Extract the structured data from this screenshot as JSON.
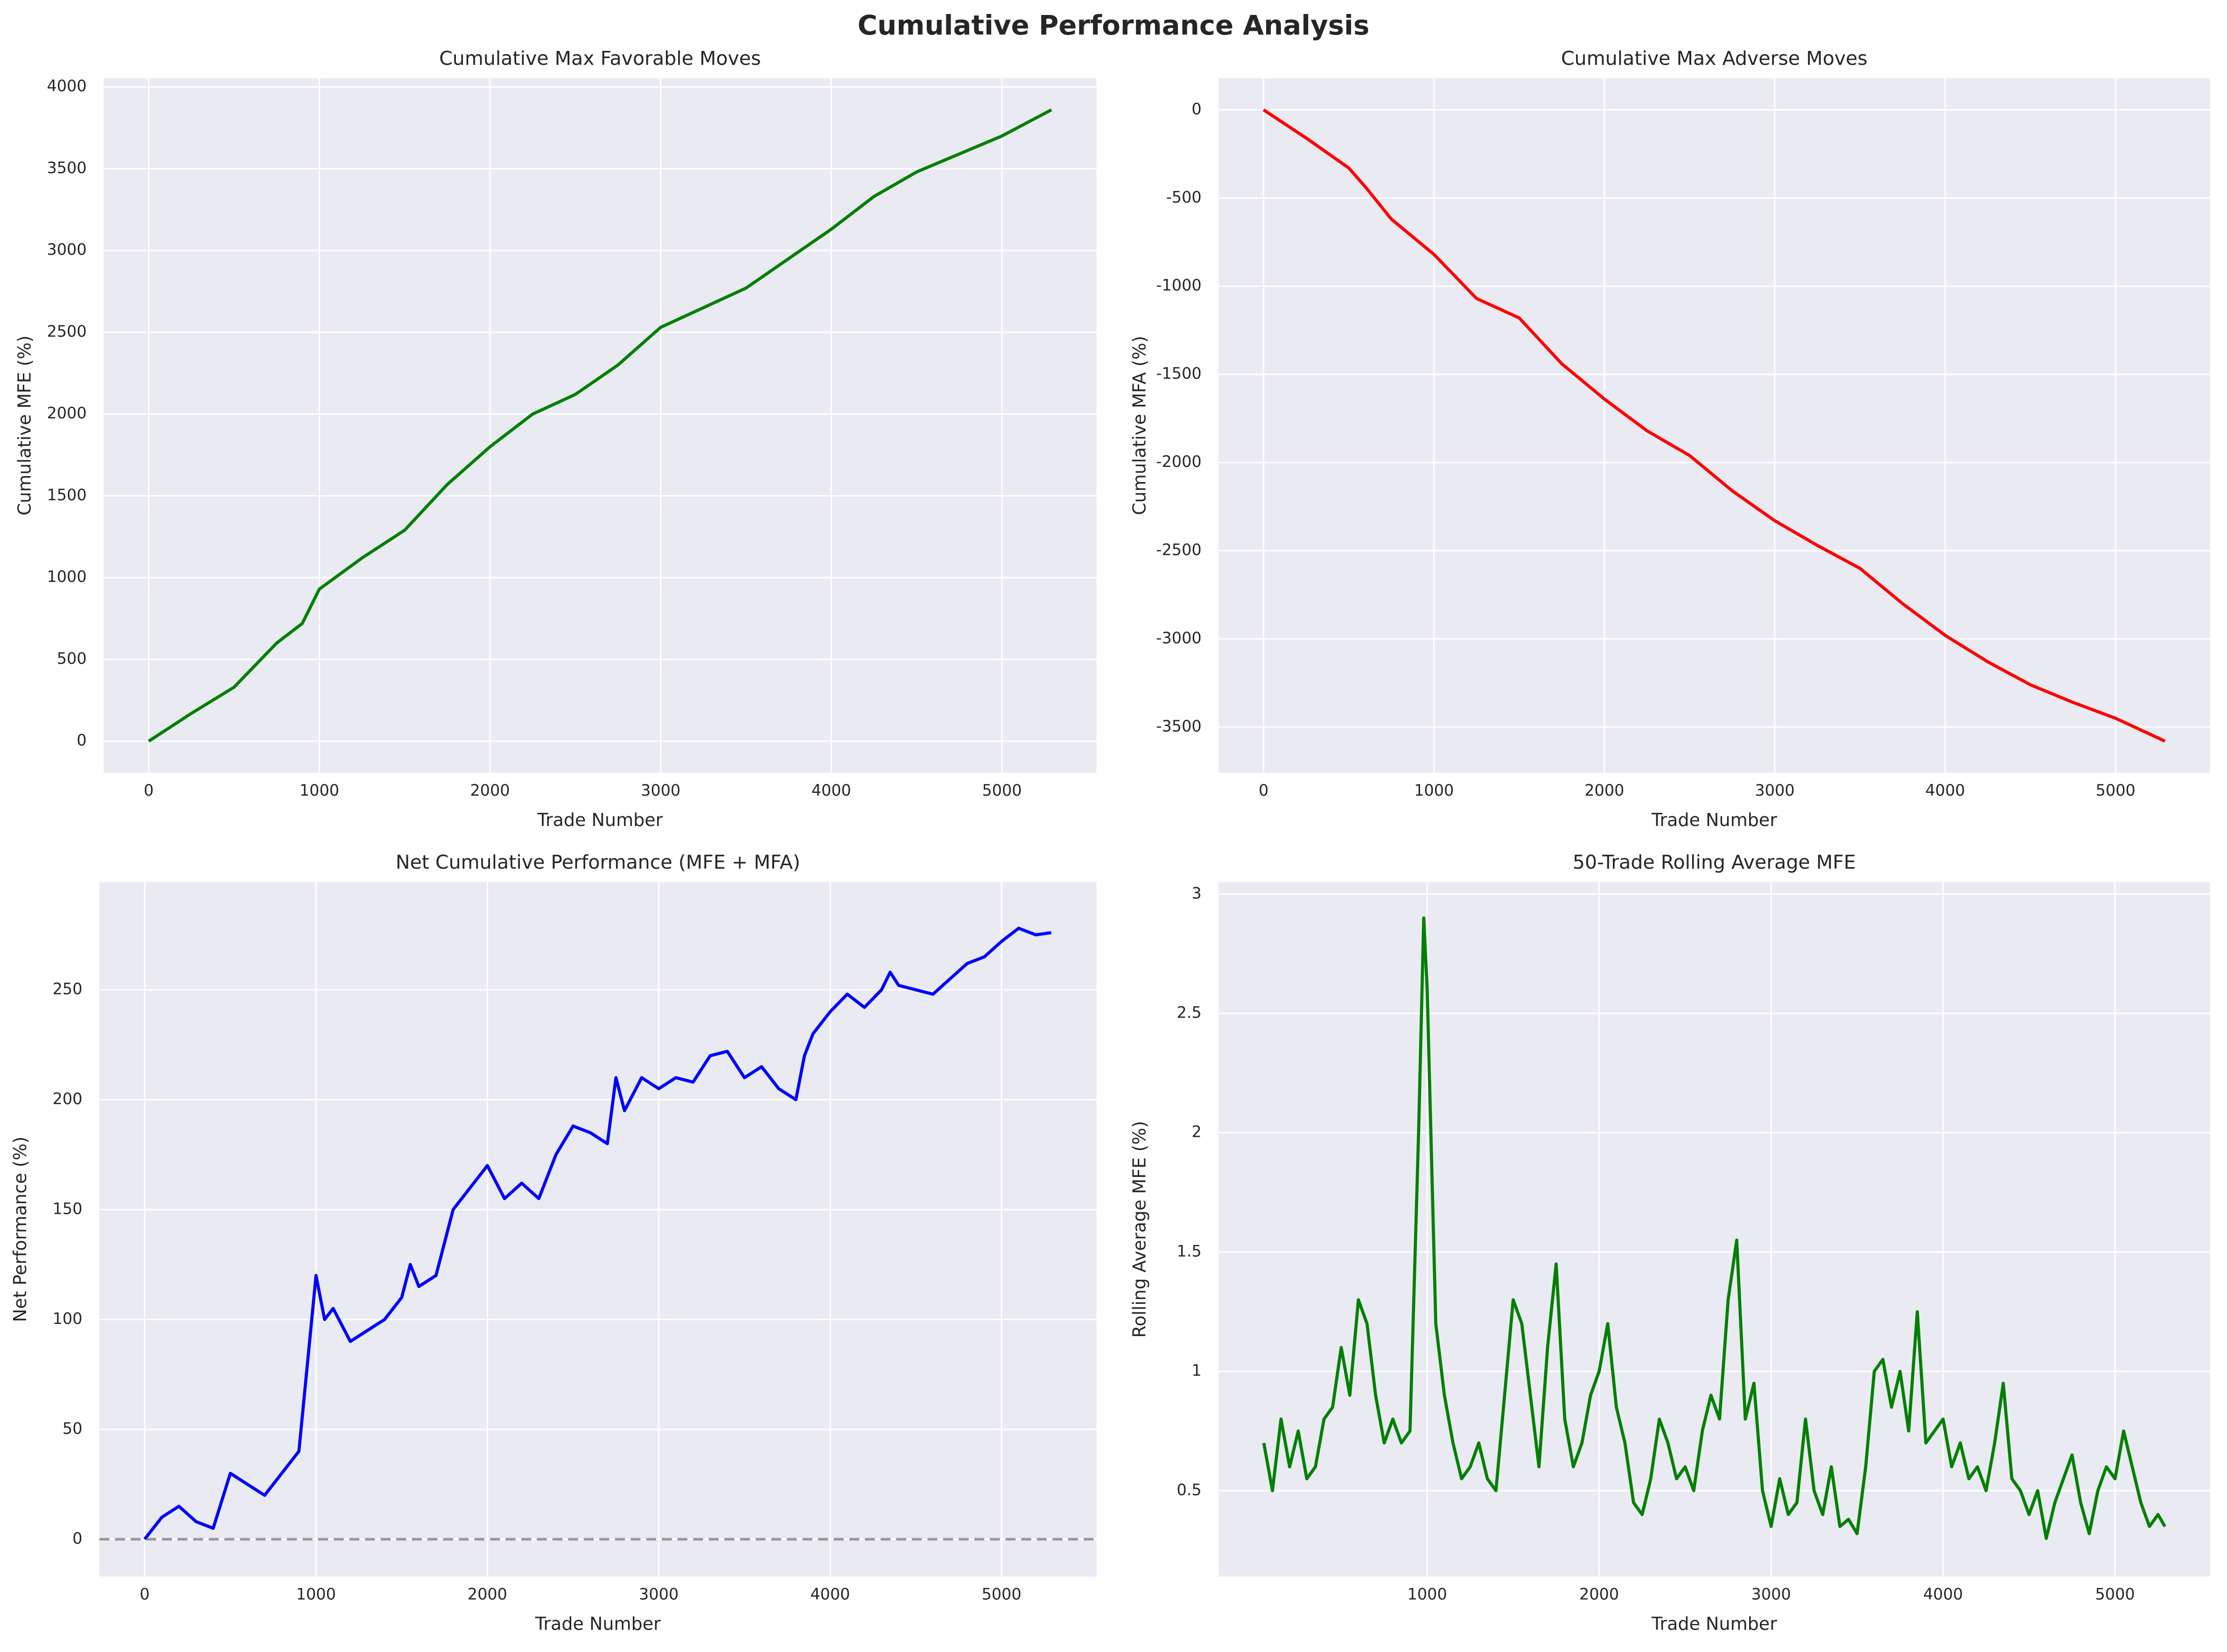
{
  "title": "Cumulative Performance Analysis",
  "chart_data": [
    {
      "type": "line",
      "title": "Cumulative Max Favorable Moves",
      "x_label": "Trade Number",
      "y_label": "Cumulative MFE (%)",
      "color": "green",
      "grid": true,
      "x": [
        0,
        250,
        500,
        750,
        900,
        1000,
        1250,
        1500,
        1750,
        2000,
        2250,
        2500,
        2750,
        3000,
        3250,
        3500,
        3750,
        4000,
        4250,
        4500,
        4750,
        5000,
        5290
      ],
      "values": [
        0,
        170,
        330,
        600,
        720,
        930,
        1120,
        1290,
        1570,
        1800,
        2000,
        2120,
        2300,
        2530,
        2650,
        2770,
        2950,
        3130,
        3330,
        3480,
        3590,
        3700,
        3860
      ],
      "xlim": [
        -264,
        5554
      ],
      "ylim": [
        -193,
        4053
      ],
      "xticks": [
        0,
        1000,
        2000,
        3000,
        4000,
        5000
      ],
      "yticks": [
        0,
        500,
        1000,
        1500,
        2000,
        2500,
        3000,
        3500,
        4000
      ]
    },
    {
      "type": "line",
      "title": "Cumulative Max Adverse Moves",
      "x_label": "Trade Number",
      "y_label": "Cumulative MFA (%)",
      "color": "red",
      "grid": true,
      "x": [
        0,
        250,
        500,
        600,
        750,
        1000,
        1250,
        1500,
        1750,
        2000,
        2250,
        2500,
        2750,
        3000,
        3250,
        3500,
        3750,
        4000,
        4250,
        4500,
        4750,
        5000,
        5290
      ],
      "values": [
        0,
        -160,
        -330,
        -440,
        -620,
        -820,
        -1070,
        -1180,
        -1440,
        -1640,
        -1820,
        -1960,
        -2160,
        -2330,
        -2470,
        -2600,
        -2800,
        -2980,
        -3130,
        -3260,
        -3360,
        -3450,
        -3580
      ],
      "xlim": [
        -264,
        5554
      ],
      "ylim": [
        -3759,
        179
      ],
      "xticks": [
        0,
        1000,
        2000,
        3000,
        4000,
        5000
      ],
      "yticks": [
        -3500,
        -3000,
        -2500,
        -2000,
        -1500,
        -1000,
        -500,
        0
      ]
    },
    {
      "type": "line",
      "title": "Net Cumulative Performance (MFE + MFA)",
      "x_label": "Trade Number",
      "y_label": "Net Performance (%)",
      "color": "blue",
      "grid": true,
      "reference_line": {
        "value": 0,
        "color": "gray",
        "style": "dashed"
      },
      "x": [
        0,
        100,
        200,
        300,
        400,
        500,
        600,
        700,
        800,
        900,
        950,
        1000,
        1050,
        1100,
        1200,
        1300,
        1400,
        1500,
        1550,
        1600,
        1700,
        1800,
        1900,
        2000,
        2100,
        2200,
        2300,
        2400,
        2500,
        2600,
        2700,
        2750,
        2800,
        2900,
        3000,
        3100,
        3200,
        3300,
        3400,
        3500,
        3600,
        3700,
        3800,
        3850,
        3900,
        4000,
        4100,
        4200,
        4300,
        4350,
        4400,
        4500,
        4600,
        4700,
        4800,
        4900,
        5000,
        5100,
        5200,
        5290
      ],
      "values": [
        0,
        10,
        15,
        8,
        5,
        30,
        25,
        20,
        30,
        40,
        80,
        120,
        100,
        105,
        90,
        95,
        100,
        110,
        125,
        115,
        120,
        150,
        160,
        170,
        155,
        162,
        155,
        175,
        188,
        185,
        180,
        210,
        195,
        210,
        205,
        210,
        208,
        220,
        222,
        210,
        215,
        205,
        200,
        220,
        230,
        240,
        248,
        242,
        250,
        258,
        252,
        250,
        248,
        255,
        262,
        265,
        272,
        278,
        275,
        276
      ],
      "xlim": [
        -264,
        5554
      ],
      "ylim": [
        -17,
        299
      ],
      "xticks": [
        0,
        1000,
        2000,
        3000,
        4000,
        5000
      ],
      "yticks": [
        0,
        50,
        100,
        150,
        200,
        250
      ]
    },
    {
      "type": "line",
      "title": "50-Trade Rolling Average MFE",
      "x_label": "Trade Number",
      "y_label": "Rolling Average MFE (%)",
      "color": "green",
      "grid": true,
      "x": [
        50,
        100,
        150,
        200,
        250,
        300,
        350,
        400,
        450,
        500,
        550,
        600,
        650,
        700,
        750,
        800,
        850,
        900,
        950,
        980,
        1000,
        1050,
        1100,
        1150,
        1200,
        1250,
        1300,
        1350,
        1400,
        1450,
        1500,
        1550,
        1600,
        1650,
        1700,
        1750,
        1800,
        1850,
        1900,
        1950,
        2000,
        2050,
        2100,
        2150,
        2200,
        2250,
        2300,
        2350,
        2400,
        2450,
        2500,
        2550,
        2600,
        2650,
        2700,
        2750,
        2800,
        2850,
        2900,
        2950,
        3000,
        3050,
        3100,
        3150,
        3200,
        3250,
        3300,
        3350,
        3400,
        3450,
        3500,
        3550,
        3600,
        3650,
        3700,
        3750,
        3800,
        3850,
        3900,
        3950,
        4000,
        4050,
        4100,
        4150,
        4200,
        4250,
        4300,
        4350,
        4400,
        4450,
        4500,
        4550,
        4600,
        4650,
        4700,
        4750,
        4800,
        4850,
        4900,
        4950,
        5000,
        5050,
        5100,
        5150,
        5200,
        5250,
        5290
      ],
      "values": [
        0.7,
        0.5,
        0.8,
        0.6,
        0.75,
        0.55,
        0.6,
        0.8,
        0.85,
        1.1,
        0.9,
        1.3,
        1.2,
        0.9,
        0.7,
        0.8,
        0.7,
        0.75,
        2.0,
        2.9,
        2.6,
        1.2,
        0.9,
        0.7,
        0.55,
        0.6,
        0.7,
        0.55,
        0.5,
        0.9,
        1.3,
        1.2,
        0.9,
        0.6,
        1.1,
        1.45,
        0.8,
        0.6,
        0.7,
        0.9,
        1.0,
        1.2,
        0.85,
        0.7,
        0.45,
        0.4,
        0.55,
        0.8,
        0.7,
        0.55,
        0.6,
        0.5,
        0.75,
        0.9,
        0.8,
        1.3,
        1.55,
        0.8,
        0.95,
        0.5,
        0.35,
        0.55,
        0.4,
        0.45,
        0.8,
        0.5,
        0.4,
        0.6,
        0.35,
        0.38,
        0.32,
        0.6,
        1.0,
        1.05,
        0.85,
        1.0,
        0.75,
        1.25,
        0.7,
        0.75,
        0.8,
        0.6,
        0.7,
        0.55,
        0.6,
        0.5,
        0.7,
        0.95,
        0.55,
        0.5,
        0.4,
        0.5,
        0.3,
        0.45,
        0.55,
        0.65,
        0.45,
        0.32,
        0.5,
        0.6,
        0.55,
        0.75,
        0.6,
        0.45,
        0.35,
        0.4,
        0.35
      ],
      "xlim": [
        -213,
        5552
      ],
      "ylim": [
        0.14,
        3.05
      ],
      "xticks": [
        1000,
        2000,
        3000,
        4000,
        5000
      ],
      "yticks": [
        0.5,
        1.0,
        1.5,
        2.0,
        2.5,
        3.0
      ]
    }
  ]
}
